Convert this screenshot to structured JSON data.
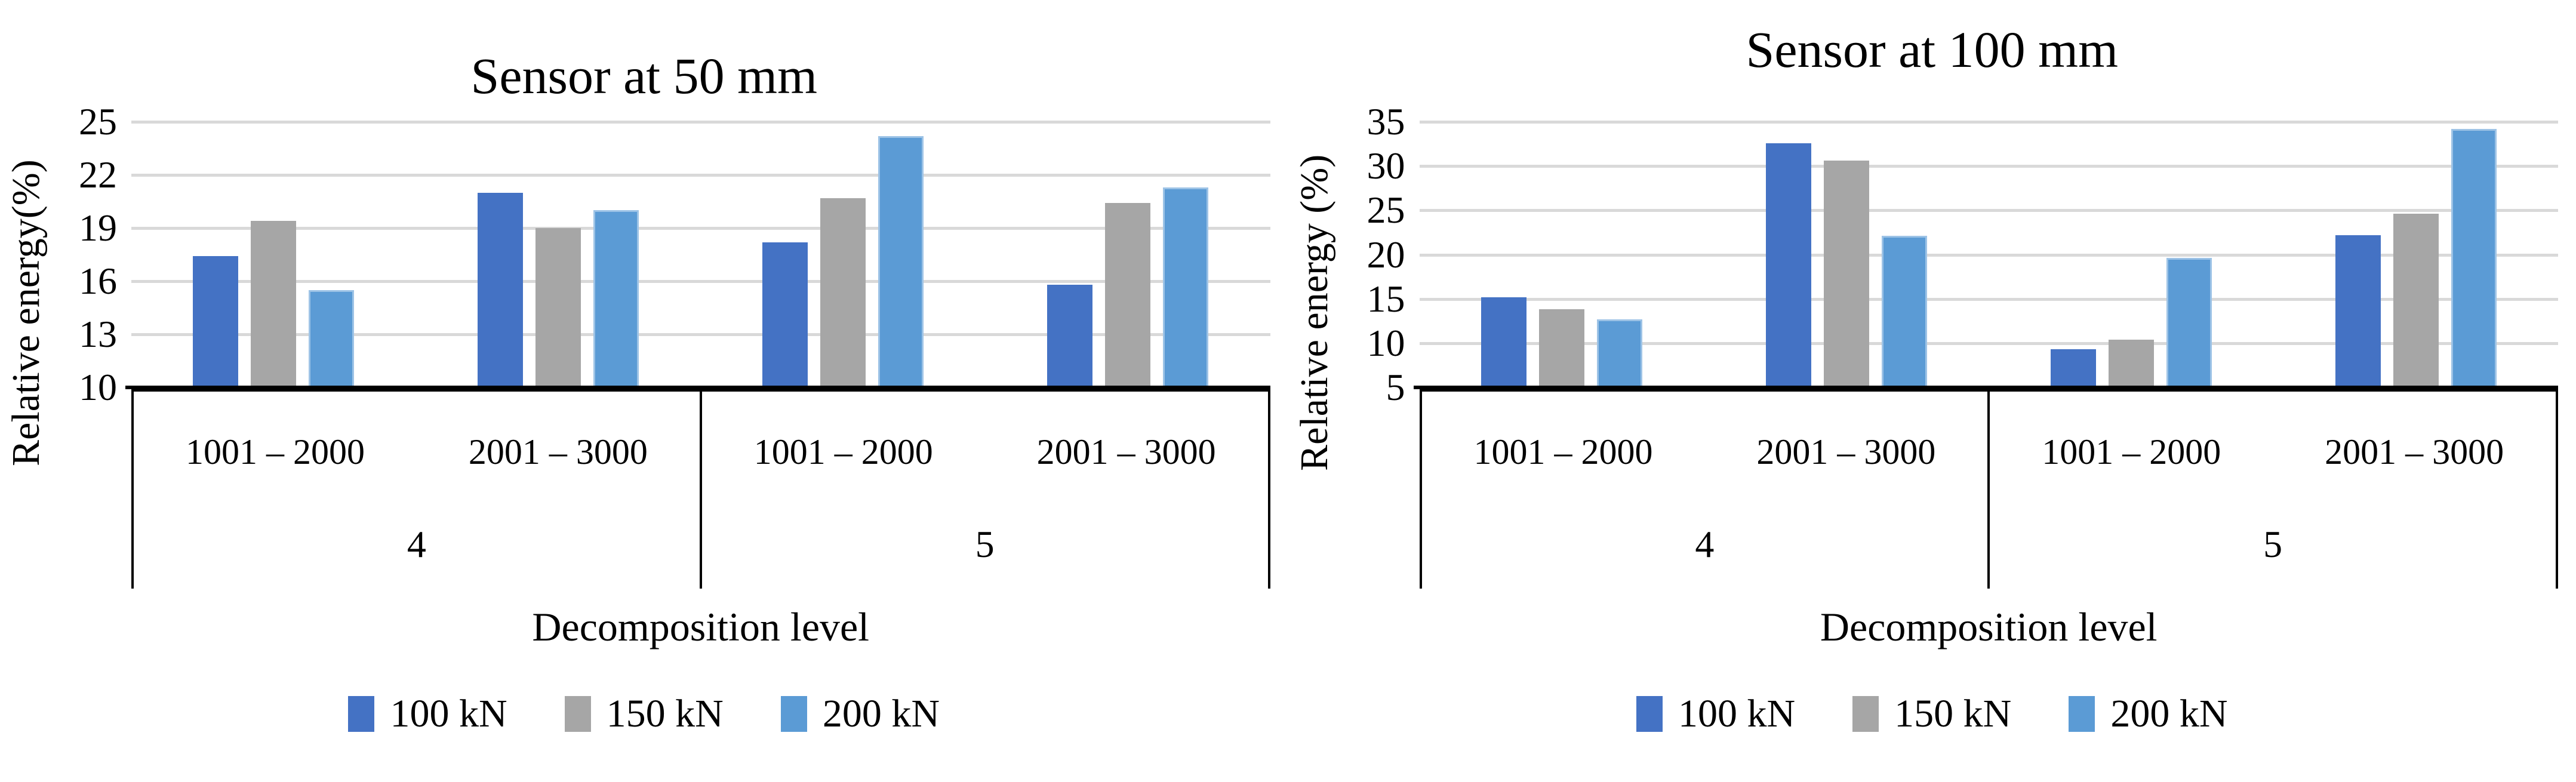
{
  "chart_data": [
    {
      "type": "bar",
      "title": "Sensor at 50 mm",
      "ylabel": "Relative energy(%)",
      "xlabel": "Decomposition level",
      "ylim": [
        10,
        25
      ],
      "ytick_step": 3,
      "yticks": [
        10,
        13,
        16,
        19,
        22,
        25
      ],
      "grid": true,
      "legend_position": "bottom",
      "group_labels": [
        "1001 – 2000",
        "2001 – 3000",
        "1001 – 2000",
        "2001 – 3000"
      ],
      "level_labels": [
        "4",
        "5"
      ],
      "series": [
        {
          "name": "100 kN",
          "color": "#4472C4",
          "values": [
            17.4,
            21.0,
            18.2,
            15.8
          ]
        },
        {
          "name": "150 kN",
          "color": "#A6A6A6",
          "values": [
            19.4,
            19.0,
            20.7,
            20.4
          ]
        },
        {
          "name": "200 kN",
          "color": "#5B9BD5",
          "values": [
            15.5,
            20.0,
            24.2,
            21.3
          ]
        }
      ]
    },
    {
      "type": "bar",
      "title": "Sensor at 100 mm",
      "ylabel": "Relative energy (%)",
      "xlabel": "Decomposition level",
      "ylim": [
        5,
        35
      ],
      "ytick_step": 5,
      "yticks": [
        5,
        10,
        15,
        20,
        25,
        30,
        35
      ],
      "grid": true,
      "legend_position": "bottom",
      "group_labels": [
        "1001 – 2000",
        "2001 – 3000",
        "1001 – 2000",
        "2001 – 3000"
      ],
      "level_labels": [
        "4",
        "5"
      ],
      "series": [
        {
          "name": "100 kN",
          "color": "#4472C4",
          "values": [
            15.2,
            32.6,
            9.3,
            22.2
          ]
        },
        {
          "name": "150 kN",
          "color": "#A6A6A6",
          "values": [
            13.8,
            30.6,
            10.4,
            24.6
          ]
        },
        {
          "name": "200 kN",
          "color": "#5B9BD5",
          "values": [
            12.7,
            22.1,
            19.6,
            34.2
          ]
        }
      ]
    }
  ],
  "colors": {
    "gridline": "#D9D9D9",
    "axis": "#000000",
    "series_100kN": "#4472C4",
    "series_150kN": "#A6A6A6",
    "series_200kN": "#5B9BD5"
  }
}
